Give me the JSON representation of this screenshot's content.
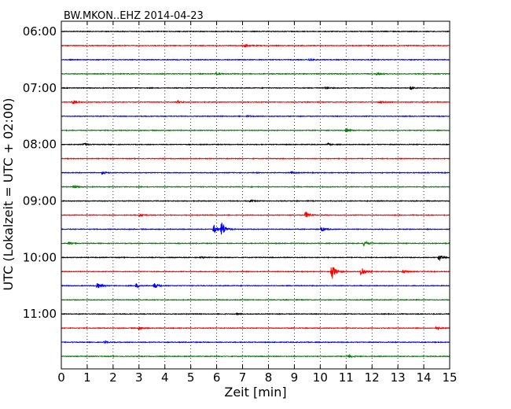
{
  "chart_data": {
    "type": "line",
    "title": "BW.MKON..EHZ 2014-04-23",
    "xlabel": "Zeit  [min]",
    "ylabel": "UTC (Lokalzeit = UTC + 02:00)",
    "xlim": [
      0,
      15
    ],
    "x_ticks": [
      "0",
      "1",
      "2",
      "3",
      "4",
      "5",
      "6",
      "7",
      "8",
      "9",
      "10",
      "11",
      "12",
      "13",
      "14",
      "15"
    ],
    "y_tick_labels": [
      "06:00",
      "07:00",
      "08:00",
      "09:00",
      "10:00",
      "11:00"
    ],
    "trace_start_times": [
      "06:00",
      "06:15",
      "06:30",
      "06:45",
      "07:00",
      "07:15",
      "07:30",
      "07:45",
      "08:00",
      "08:15",
      "08:30",
      "08:45",
      "09:00",
      "09:15",
      "09:30",
      "09:45",
      "10:00",
      "10:15",
      "10:30",
      "10:45",
      "11:00",
      "11:15",
      "11:30",
      "11:45"
    ],
    "trace_colors": [
      "#000000",
      "#ff0000",
      "#0000ff",
      "#008000"
    ],
    "grid_x": true,
    "grid_style": "dotted",
    "events": [
      {
        "trace": 1,
        "minute": 7.1,
        "amp": 0.25
      },
      {
        "trace": 2,
        "minute": 9.6,
        "amp": 0.18
      },
      {
        "trace": 3,
        "minute": 6.0,
        "amp": 0.15
      },
      {
        "trace": 3,
        "minute": 12.2,
        "amp": 0.18
      },
      {
        "trace": 4,
        "minute": 13.5,
        "amp": 0.22
      },
      {
        "trace": 4,
        "minute": 10.2,
        "amp": 0.15
      },
      {
        "trace": 5,
        "minute": 0.45,
        "amp": 0.3
      },
      {
        "trace": 5,
        "minute": 4.5,
        "amp": 0.2
      },
      {
        "trace": 5,
        "minute": 12.3,
        "amp": 0.15
      },
      {
        "trace": 6,
        "minute": 7.2,
        "amp": 0.1
      },
      {
        "trace": 7,
        "minute": 11.0,
        "amp": 0.28
      },
      {
        "trace": 8,
        "minute": 0.9,
        "amp": 0.15
      },
      {
        "trace": 8,
        "minute": 10.3,
        "amp": 0.12
      },
      {
        "trace": 10,
        "minute": 1.6,
        "amp": 0.18
      },
      {
        "trace": 10,
        "minute": 8.9,
        "amp": 0.12
      },
      {
        "trace": 11,
        "minute": 0.5,
        "amp": 0.15
      },
      {
        "trace": 12,
        "minute": 7.3,
        "amp": 0.12
      },
      {
        "trace": 13,
        "minute": 9.45,
        "amp": 0.45
      },
      {
        "trace": 13,
        "minute": 3.05,
        "amp": 0.2
      },
      {
        "trace": 14,
        "minute": 6.2,
        "amp": 1.1
      },
      {
        "trace": 14,
        "minute": 5.9,
        "amp": 0.6
      },
      {
        "trace": 14,
        "minute": 10.05,
        "amp": 0.35
      },
      {
        "trace": 15,
        "minute": 11.7,
        "amp": 0.4
      },
      {
        "trace": 15,
        "minute": 0.3,
        "amp": 0.15
      },
      {
        "trace": 16,
        "minute": 14.6,
        "amp": 0.4
      },
      {
        "trace": 16,
        "minute": 5.4,
        "amp": 0.15
      },
      {
        "trace": 17,
        "minute": 10.45,
        "amp": 1.2
      },
      {
        "trace": 17,
        "minute": 11.6,
        "amp": 0.7
      },
      {
        "trace": 17,
        "minute": 13.2,
        "amp": 0.2
      },
      {
        "trace": 18,
        "minute": 2.9,
        "amp": 0.3
      },
      {
        "trace": 18,
        "minute": 1.4,
        "amp": 0.4
      },
      {
        "trace": 18,
        "minute": 3.6,
        "amp": 0.35
      },
      {
        "trace": 20,
        "minute": 6.8,
        "amp": 0.08
      },
      {
        "trace": 21,
        "minute": 3.0,
        "amp": 0.2
      },
      {
        "trace": 21,
        "minute": 14.5,
        "amp": 0.2
      },
      {
        "trace": 22,
        "minute": 1.7,
        "amp": 0.12
      },
      {
        "trace": 23,
        "minute": 11.1,
        "amp": 0.2
      }
    ]
  }
}
